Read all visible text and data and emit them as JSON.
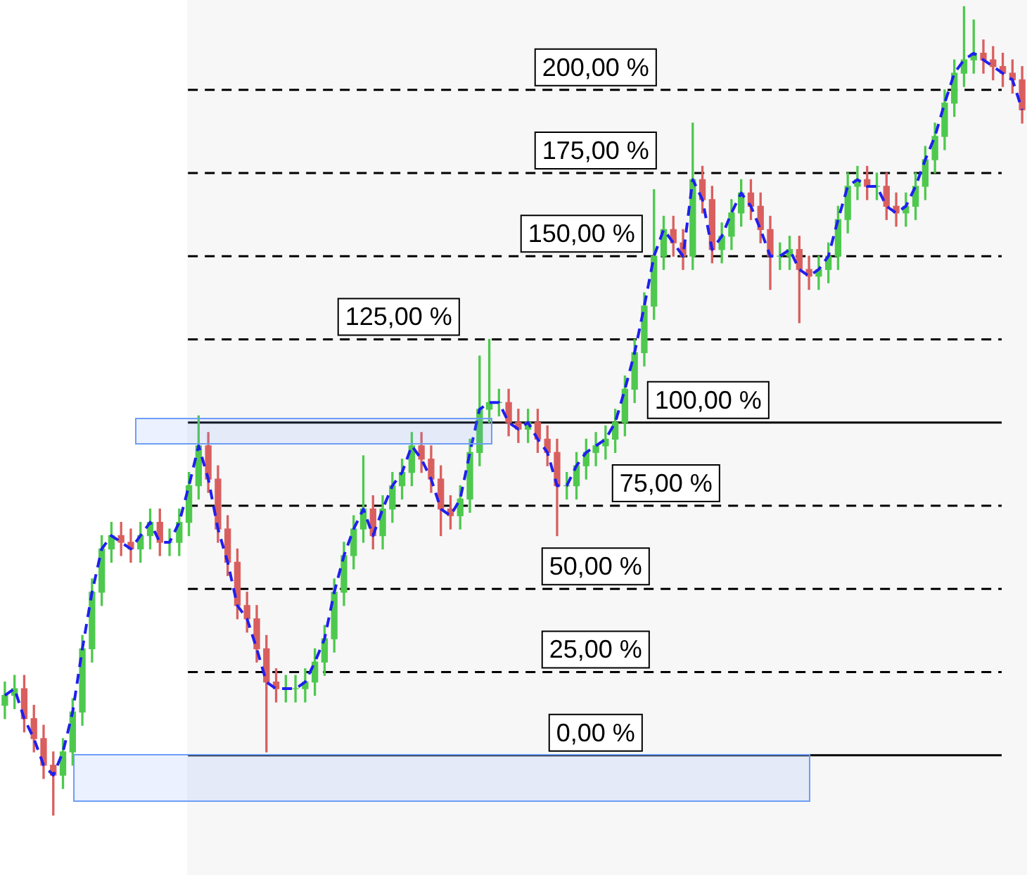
{
  "chart_data": {
    "type": "candlestick",
    "tick_labels": false,
    "ylim": [
      -36,
      227
    ],
    "categories": [
      null,
      null,
      null,
      null,
      null,
      null,
      null,
      null,
      null,
      null,
      null,
      null,
      null,
      null,
      null,
      null,
      null,
      null,
      null,
      null,
      null,
      null,
      null,
      null,
      null,
      null,
      null,
      null,
      null,
      null,
      null,
      null,
      null,
      null,
      null,
      null,
      null,
      null,
      null,
      null,
      null,
      null,
      null,
      null,
      null,
      null,
      null,
      null,
      null,
      null,
      null,
      null,
      null,
      null,
      null,
      null,
      null,
      null,
      null,
      null,
      null,
      null,
      null,
      null,
      null,
      null,
      null,
      null,
      null,
      null,
      null,
      null,
      null,
      null,
      null,
      null,
      null,
      null,
      null,
      null,
      null,
      null,
      null,
      null,
      null,
      null,
      null,
      null,
      null,
      null,
      null,
      null,
      null,
      null,
      null,
      null,
      null,
      null,
      null,
      null,
      null,
      null,
      null,
      null,
      null,
      null
    ],
    "ohlc": [
      [
        15,
        22,
        11,
        18
      ],
      [
        18,
        24,
        14,
        20
      ],
      [
        20,
        24,
        7,
        11
      ],
      [
        11,
        15,
        1,
        5
      ],
      [
        5,
        9,
        -7,
        -3
      ],
      [
        -3,
        1,
        -18,
        -6
      ],
      [
        -6,
        5,
        -10,
        1
      ],
      [
        1,
        17,
        -3,
        13
      ],
      [
        13,
        36,
        9,
        32
      ],
      [
        32,
        53,
        28,
        49
      ],
      [
        49,
        66,
        45,
        62
      ],
      [
        62,
        70,
        58,
        66
      ],
      [
        66,
        70,
        60,
        64
      ],
      [
        64,
        68,
        58,
        62
      ],
      [
        62,
        70,
        58,
        66
      ],
      [
        66,
        74,
        62,
        70
      ],
      [
        70,
        74,
        60,
        64
      ],
      [
        64,
        68,
        60,
        64
      ],
      [
        64,
        74,
        60,
        70
      ],
      [
        70,
        85,
        66,
        81
      ],
      [
        81,
        102,
        77,
        93
      ],
      [
        93,
        97,
        79,
        83
      ],
      [
        83,
        87,
        64,
        68
      ],
      [
        68,
        72,
        54,
        58
      ],
      [
        58,
        62,
        41,
        45
      ],
      [
        45,
        49,
        37,
        41
      ],
      [
        41,
        45,
        28,
        32
      ],
      [
        32,
        36,
        1,
        22
      ],
      [
        22,
        26,
        16,
        20
      ],
      [
        20,
        24,
        16,
        20
      ],
      [
        20,
        24,
        16,
        20
      ],
      [
        20,
        26,
        16,
        22
      ],
      [
        22,
        32,
        18,
        28
      ],
      [
        28,
        39,
        24,
        35
      ],
      [
        35,
        53,
        31,
        49
      ],
      [
        49,
        64,
        45,
        60
      ],
      [
        60,
        72,
        56,
        68
      ],
      [
        68,
        90,
        64,
        74
      ],
      [
        74,
        78,
        62,
        66
      ],
      [
        66,
        78,
        62,
        74
      ],
      [
        74,
        85,
        70,
        81
      ],
      [
        81,
        89,
        77,
        85
      ],
      [
        85,
        97,
        81,
        93
      ],
      [
        93,
        97,
        85,
        89
      ],
      [
        89,
        93,
        79,
        83
      ],
      [
        83,
        87,
        66,
        74
      ],
      [
        74,
        78,
        68,
        72
      ],
      [
        72,
        81,
        68,
        77
      ],
      [
        77,
        95,
        73,
        91
      ],
      [
        91,
        120,
        87,
        104
      ],
      [
        104,
        125,
        100,
        106
      ],
      [
        106,
        110,
        102,
        106
      ],
      [
        106,
        110,
        96,
        100
      ],
      [
        100,
        104,
        94,
        98
      ],
      [
        98,
        104,
        94,
        100
      ],
      [
        100,
        104,
        91,
        95
      ],
      [
        95,
        99,
        87,
        91
      ],
      [
        91,
        95,
        66,
        81
      ],
      [
        81,
        85,
        77,
        81
      ],
      [
        81,
        91,
        77,
        87
      ],
      [
        87,
        95,
        83,
        91
      ],
      [
        91,
        97,
        87,
        93
      ],
      [
        93,
        99,
        89,
        95
      ],
      [
        95,
        104,
        91,
        100
      ],
      [
        100,
        114,
        96,
        110
      ],
      [
        110,
        125,
        106,
        121
      ],
      [
        121,
        139,
        117,
        135
      ],
      [
        135,
        170,
        131,
        150
      ],
      [
        150,
        162,
        146,
        158
      ],
      [
        158,
        162,
        150,
        154
      ],
      [
        154,
        158,
        146,
        150
      ],
      [
        150,
        190,
        146,
        173
      ],
      [
        173,
        177,
        163,
        167
      ],
      [
        167,
        171,
        148,
        152
      ],
      [
        152,
        160,
        148,
        156
      ],
      [
        156,
        167,
        152,
        163
      ],
      [
        163,
        173,
        159,
        169
      ],
      [
        169,
        173,
        161,
        165
      ],
      [
        165,
        169,
        154,
        158
      ],
      [
        158,
        162,
        140,
        150
      ],
      [
        150,
        154,
        146,
        150
      ],
      [
        150,
        156,
        146,
        152
      ],
      [
        152,
        156,
        130,
        146
      ],
      [
        146,
        150,
        140,
        144
      ],
      [
        144,
        150,
        140,
        146
      ],
      [
        146,
        154,
        142,
        150
      ],
      [
        150,
        165,
        146,
        161
      ],
      [
        161,
        175,
        157,
        171
      ],
      [
        171,
        177,
        167,
        173
      ],
      [
        173,
        177,
        167,
        171
      ],
      [
        171,
        175,
        167,
        171
      ],
      [
        171,
        175,
        161,
        165
      ],
      [
        165,
        169,
        159,
        163
      ],
      [
        163,
        169,
        159,
        165
      ],
      [
        165,
        175,
        161,
        171
      ],
      [
        171,
        183,
        167,
        179
      ],
      [
        179,
        190,
        175,
        186
      ],
      [
        186,
        200,
        182,
        196
      ],
      [
        196,
        209,
        192,
        205
      ],
      [
        205,
        225,
        201,
        209
      ],
      [
        209,
        221,
        205,
        211
      ],
      [
        211,
        215,
        205,
        209
      ],
      [
        209,
        213,
        203,
        207
      ],
      [
        207,
        211,
        201,
        205
      ],
      [
        205,
        209,
        199,
        203
      ],
      [
        203,
        207,
        190,
        194
      ]
    ],
    "colors": [
      "#4ec94e",
      "#4ec94e",
      "#d95f5f",
      "#d95f5f",
      "#d95f5f",
      "#d95f5f",
      "#4ec94e",
      "#4ec94e",
      "#4ec94e",
      "#4ec94e",
      "#4ec94e",
      "#4ec94e",
      "#d95f5f",
      "#d95f5f",
      "#4ec94e",
      "#4ec94e",
      "#d95f5f",
      "#4ec94e",
      "#4ec94e",
      "#4ec94e",
      "#4ec94e",
      "#d95f5f",
      "#d95f5f",
      "#d95f5f",
      "#d95f5f",
      "#d95f5f",
      "#d95f5f",
      "#d95f5f",
      "#d95f5f",
      "#4ec94e",
      "#4ec94e",
      "#4ec94e",
      "#4ec94e",
      "#4ec94e",
      "#4ec94e",
      "#4ec94e",
      "#4ec94e",
      "#4ec94e",
      "#d95f5f",
      "#4ec94e",
      "#4ec94e",
      "#4ec94e",
      "#4ec94e",
      "#d95f5f",
      "#d95f5f",
      "#d95f5f",
      "#d95f5f",
      "#4ec94e",
      "#4ec94e",
      "#4ec94e",
      "#4ec94e",
      "#4ec94e",
      "#d95f5f",
      "#d95f5f",
      "#4ec94e",
      "#d95f5f",
      "#d95f5f",
      "#d95f5f",
      "#4ec94e",
      "#4ec94e",
      "#4ec94e",
      "#4ec94e",
      "#4ec94e",
      "#4ec94e",
      "#4ec94e",
      "#4ec94e",
      "#4ec94e",
      "#4ec94e",
      "#4ec94e",
      "#d95f5f",
      "#d95f5f",
      "#4ec94e",
      "#d95f5f",
      "#d95f5f",
      "#4ec94e",
      "#4ec94e",
      "#4ec94e",
      "#d95f5f",
      "#d95f5f",
      "#d95f5f",
      "#4ec94e",
      "#4ec94e",
      "#d95f5f",
      "#d95f5f",
      "#4ec94e",
      "#4ec94e",
      "#4ec94e",
      "#4ec94e",
      "#4ec94e",
      "#d95f5f",
      "#4ec94e",
      "#d95f5f",
      "#d95f5f",
      "#4ec94e",
      "#4ec94e",
      "#4ec94e",
      "#4ec94e",
      "#4ec94e",
      "#4ec94e",
      "#4ec94e",
      "#4ec94e",
      "#d95f5f",
      "#d95f5f",
      "#d95f5f",
      "#d95f5f",
      "#d95f5f"
    ],
    "series": [
      {
        "type": "line",
        "color": "#1f1fef",
        "line_style": "dashed",
        "values": [
          18,
          20,
          11,
          5,
          -3,
          -6,
          1,
          13,
          32,
          49,
          62,
          66,
          64,
          62,
          66,
          70,
          64,
          64,
          70,
          81,
          93,
          83,
          68,
          58,
          45,
          41,
          32,
          22,
          20,
          20,
          20,
          22,
          28,
          35,
          49,
          60,
          68,
          74,
          66,
          74,
          81,
          85,
          93,
          89,
          83,
          74,
          72,
          77,
          91,
          104,
          106,
          106,
          100,
          98,
          100,
          95,
          91,
          81,
          81,
          87,
          91,
          93,
          95,
          100,
          110,
          121,
          135,
          150,
          158,
          154,
          150,
          173,
          167,
          152,
          156,
          163,
          169,
          165,
          158,
          150,
          150,
          152,
          146,
          144,
          146,
          150,
          161,
          171,
          173,
          171,
          171,
          165,
          163,
          165,
          171,
          179,
          186,
          196,
          205,
          209,
          211,
          209,
          207,
          205,
          203,
          194
        ]
      }
    ],
    "ref_lines": [
      {
        "axis": "y",
        "value": 200,
        "label": "200,00 %",
        "line_style": "dashed"
      },
      {
        "axis": "y",
        "value": 175,
        "label": "175,00 %",
        "line_style": "dashed"
      },
      {
        "axis": "y",
        "value": 150,
        "label": "150,00 %",
        "line_style": "dashed"
      },
      {
        "axis": "y",
        "value": 125,
        "label": "125,00 %",
        "line_style": "dashed"
      },
      {
        "axis": "y",
        "value": 100,
        "label": "100,00 %",
        "line_style": "solid"
      },
      {
        "axis": "y",
        "value": 75,
        "label": "75,00 %",
        "line_style": "dashed"
      },
      {
        "axis": "y",
        "value": 50,
        "label": "50,00 %",
        "line_style": "dashed"
      },
      {
        "axis": "y",
        "value": 25,
        "label": "25,00 %",
        "line_style": "dashed"
      },
      {
        "axis": "y",
        "value": 0,
        "label": "0,00 %",
        "line_style": "solid"
      }
    ]
  }
}
